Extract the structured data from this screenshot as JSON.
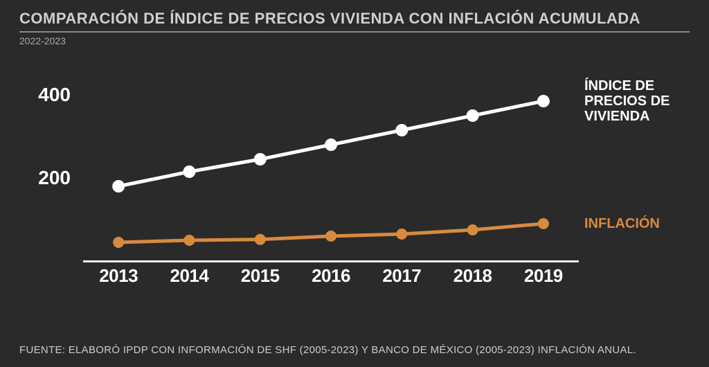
{
  "title": "COMPARACIÓN DE ÍNDICE DE PRECIOS VIVIENDA CON INFLACIÓN ACUMULADA",
  "subtitle": "2022-2023",
  "footer": "FUENTE: ELABORÓ IPDP CON INFORMACIÓN DE SHF (2005-2023) Y BANCO DE MÉXICO (2005-2023) INFLACIÓN ANUAL.",
  "chart": {
    "type": "line",
    "background_color": "#2a2a2a",
    "title_fontsize": 22,
    "title_color": "#d0d0d0",
    "subtitle_fontsize": 14,
    "subtitle_color": "#aaaaaa",
    "ylim": [
      0,
      500
    ],
    "yticks": [
      200,
      400
    ],
    "ytick_fontsize": 28,
    "categories": [
      "2013",
      "2014",
      "2015",
      "2016",
      "2017",
      "2018",
      "2019"
    ],
    "xtick_fontsize": 26,
    "axis_color": "#ffffff",
    "axis_width": 3,
    "series": [
      {
        "name": "ÍNDICE DE PRECIOS DE VIVIENDA",
        "label": "ÍNDICE DE PRECIOS DE VIVIENDA",
        "color": "#ffffff",
        "line_width": 5,
        "marker": "circle",
        "marker_size": 9,
        "marker_fill": "#ffffff",
        "legend_fontsize": 20,
        "values": [
          180,
          215,
          245,
          280,
          315,
          350,
          385
        ]
      },
      {
        "name": "INFLACIÓN",
        "label": "INFLACIÓN",
        "color": "#d88a3f",
        "line_width": 5,
        "marker": "circle",
        "marker_size": 8,
        "marker_fill": "#d88a3f",
        "legend_fontsize": 20,
        "values": [
          45,
          50,
          52,
          60,
          65,
          75,
          90
        ]
      }
    ],
    "footer_fontsize": 15,
    "footer_color": "#cccccc"
  }
}
